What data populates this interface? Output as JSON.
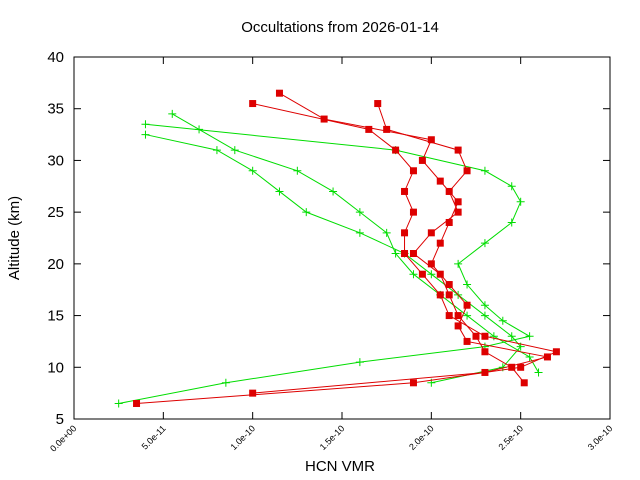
{
  "chart_data": {
    "type": "line",
    "title": "Occultations from 2026-01-14",
    "x_label": "HCN VMR",
    "y_label": "Altitude (km)",
    "xlim": [
      0,
      3e-10
    ],
    "ylim": [
      5,
      40
    ],
    "xticks": [
      {
        "value": 0,
        "label": "0.0e+00"
      },
      {
        "value": 5e-11,
        "label": "5.0e-11"
      },
      {
        "value": 1e-10,
        "label": "1.0e-10"
      },
      {
        "value": 1.5e-10,
        "label": "1.5e-10"
      },
      {
        "value": 2e-10,
        "label": "2.0e-10"
      },
      {
        "value": 2.5e-10,
        "label": "2.5e-10"
      },
      {
        "value": 3e-10,
        "label": "3.0e-10"
      }
    ],
    "yticks": [
      5,
      10,
      15,
      20,
      25,
      30,
      35,
      40
    ],
    "grid": false,
    "series": [
      {
        "color": "#00dd00",
        "marker": "plus",
        "x": [
          2.5e-11,
          8.5e-11,
          1.6e-10,
          2.3e-10,
          2.55e-10,
          2.4e-10,
          2.3e-10,
          2.2e-10,
          2.15e-10,
          2.3e-10,
          2.45e-10,
          2.5e-10,
          2.45e-10,
          2.3e-10,
          1.8e-10,
          4e-11
        ],
        "values": [
          6.5,
          8.5,
          10.5,
          12,
          13,
          14.5,
          16,
          18,
          20,
          22,
          24,
          26,
          27.5,
          29,
          31,
          33.5
        ]
      },
      {
        "color": "#00dd00",
        "marker": "plus",
        "x": [
          2e-10,
          2.4e-10,
          2.5e-10,
          2.45e-10,
          2.3e-10,
          2.15e-10,
          2e-10,
          1.85e-10,
          1.6e-10,
          1.3e-10,
          1.15e-10,
          1e-10,
          8e-11,
          4e-11
        ],
        "values": [
          8.5,
          10,
          12,
          13,
          15,
          17,
          19,
          21,
          23,
          25,
          27,
          29,
          31,
          32.5
        ]
      },
      {
        "color": "#00dd00",
        "marker": "plus",
        "x": [
          2.6e-10,
          2.55e-10,
          2.35e-10,
          2.2e-10,
          2.05e-10,
          1.9e-10,
          1.8e-10,
          1.75e-10,
          1.6e-10,
          1.45e-10,
          1.25e-10,
          9e-11,
          7e-11,
          5.5e-11
        ],
        "values": [
          9.5,
          11,
          13,
          15,
          17,
          19,
          21,
          23,
          25,
          27,
          29,
          31,
          33,
          34.5
        ]
      },
      {
        "color": "#dd0000",
        "marker": "square",
        "x": [
          3.5e-11,
          1.9e-10,
          2.5e-10,
          2.7e-10,
          2.3e-10,
          2.1e-10,
          2.05e-10,
          1.95e-10,
          1.85e-10,
          1.85e-10,
          1.9e-10,
          1.85e-10,
          1.9e-10,
          1.8e-10,
          1.65e-10,
          1e-10
        ],
        "values": [
          6.5,
          8.5,
          10,
          11.5,
          13,
          15,
          17,
          19,
          21,
          23,
          25,
          27,
          29,
          31,
          33,
          35.5
        ]
      },
      {
        "color": "#dd0000",
        "marker": "square",
        "x": [
          1e-10,
          2.3e-10,
          2.65e-10,
          2.2e-10,
          2.15e-10,
          2.2e-10,
          2.1e-10,
          2e-10,
          2.05e-10,
          2.1e-10,
          2.15e-10,
          2.05e-10,
          1.95e-10,
          2e-10,
          1.4e-10,
          1.15e-10
        ],
        "values": [
          7.5,
          9.5,
          11,
          12.5,
          14,
          16,
          18,
          20,
          22,
          24,
          26,
          28,
          30,
          32,
          34,
          36.5
        ]
      },
      {
        "color": "#dd0000",
        "marker": "square",
        "x": [
          2.52e-10,
          2.45e-10,
          2.3e-10,
          2.25e-10,
          2.15e-10,
          2.1e-10,
          2.05e-10,
          1.9e-10,
          2e-10,
          2.15e-10,
          2.1e-10,
          2.2e-10,
          2.15e-10,
          1.75e-10,
          1.7e-10
        ],
        "values": [
          8.5,
          10,
          11.5,
          13,
          15,
          17,
          19,
          21,
          23,
          25,
          27,
          29,
          31,
          33,
          35.5
        ]
      }
    ]
  }
}
